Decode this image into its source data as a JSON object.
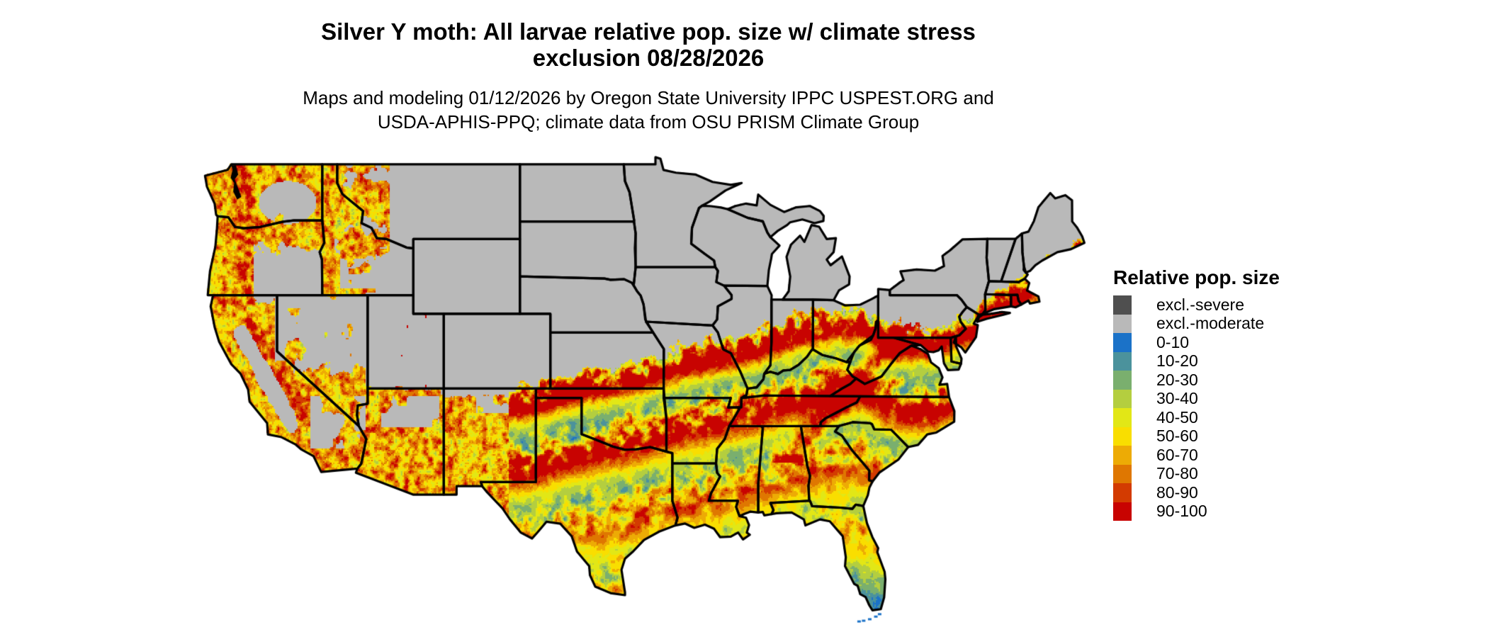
{
  "header": {
    "title_line1": "Silver Y moth: All larvae relative pop. size w/ climate stress",
    "title_line2": "exclusion 08/28/2026",
    "subtitle_line1": "Maps and modeling 01/12/2026 by Oregon State University IPPC USPEST.ORG and",
    "subtitle_line2": "USDA-APHIS-PPQ; climate data from OSU PRISM Climate Group"
  },
  "legend": {
    "title": "Relative pop. size",
    "items": [
      {
        "label": "excl.-severe",
        "color": "#4F4F4F"
      },
      {
        "label": "excl.-moderate",
        "color": "#B9B9B9"
      },
      {
        "label": "0-10",
        "color": "#1B72C8"
      },
      {
        "label": "10-20",
        "color": "#4B929C"
      },
      {
        "label": "20-30",
        "color": "#7AAF6E"
      },
      {
        "label": "30-40",
        "color": "#B4CE3F"
      },
      {
        "label": "40-50",
        "color": "#E2E716"
      },
      {
        "label": "50-60",
        "color": "#F9DE00"
      },
      {
        "label": "60-70",
        "color": "#EDAB05"
      },
      {
        "label": "70-80",
        "color": "#DF7701"
      },
      {
        "label": "80-90",
        "color": "#D33B01"
      },
      {
        "label": "90-100",
        "color": "#C80301"
      }
    ]
  },
  "map": {
    "region": "Contiguous United States",
    "border_color": "#000000",
    "background_color": "#FFFFFF"
  }
}
